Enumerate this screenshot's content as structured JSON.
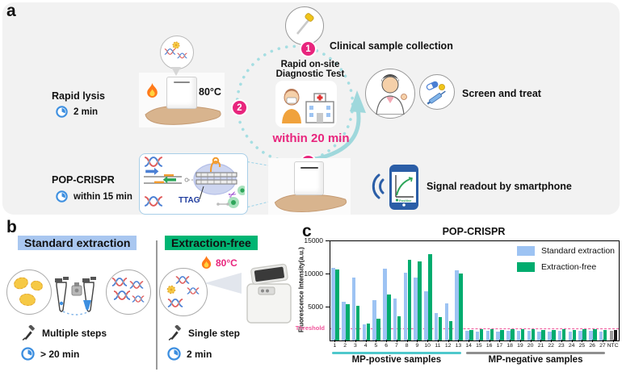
{
  "figure": {
    "panel_a_label": "a",
    "panel_b_label": "b",
    "panel_c_label": "c"
  },
  "panel_a": {
    "badge_1": "1",
    "badge_2": "2",
    "badge_3": "3",
    "clinical_label": "Clinical sample collection",
    "rapid_lysis_title": "Rapid lysis",
    "rapid_lysis_time": "2 min",
    "lysis_temp": "80°C",
    "diagnostic_test_line1": "Rapid on-site",
    "diagnostic_test_line2": "Diagnostic Test",
    "within_total_time": "within  20 min",
    "screen_treat_label": "Screen and treat",
    "pop_crispr_title": "POP-CRISPR",
    "pop_crispr_time": "within 15 min",
    "ttag_label": "TTAG",
    "signal_readout_label": "Signal readout by smartphone",
    "phone_positive_label": "Positive"
  },
  "panel_b": {
    "standard": {
      "header": "Standard extraction",
      "steps": "Multiple steps",
      "time": "> 20 min",
      "highlight": "#A9C7F0"
    },
    "extraction_free": {
      "header": "Extraction-free",
      "temp": "80°C",
      "steps": "Single step",
      "time": "2 min",
      "highlight": "#00B573"
    }
  },
  "chart_data": {
    "type": "bar",
    "title": "POP-CRISPR",
    "ylabel": "Fluorescence Intensity(a.u.)",
    "ylim": [
      0,
      15000
    ],
    "yticks": [
      5000,
      10000,
      15000
    ],
    "grid": false,
    "legend_position": "top-right",
    "categories": [
      "1",
      "2",
      "3",
      "4",
      "5",
      "6",
      "7",
      "8",
      "9",
      "10",
      "11",
      "12",
      "13",
      "14",
      "15",
      "16",
      "17",
      "18",
      "19",
      "20",
      "21",
      "22",
      "23",
      "24",
      "25",
      "26",
      "27",
      "NTC"
    ],
    "series": [
      {
        "name": "Standard extraction",
        "color": "#9DC3F3",
        "values": [
          11000,
          5800,
          9500,
          2500,
          6100,
          10900,
          6300,
          10300,
          9500,
          7500,
          4100,
          5600,
          10600,
          1500,
          1400,
          1500,
          1350,
          1500,
          1450,
          1500,
          1400,
          1350,
          1500,
          1300,
          1450,
          1500,
          1400,
          1500
        ]
      },
      {
        "name": "Extraction-free",
        "color": "#00AC6E",
        "values": [
          10700,
          5500,
          5200,
          2600,
          3300,
          7000,
          3600,
          12200,
          11900,
          13100,
          3500,
          2900,
          10100,
          1600,
          1700,
          1650,
          1600,
          1700,
          1650,
          1700,
          1600,
          1550,
          1650,
          1600,
          1700,
          1650,
          1600,
          1600
        ]
      }
    ],
    "ntc_colors": [
      "#9B9B9B",
      "#1A1A1A"
    ],
    "threshold": {
      "label": "Threshold",
      "value": 1700,
      "color": "#F0569B"
    },
    "groups": [
      {
        "text": "MP-postive samples",
        "start": 0,
        "end": 12,
        "underline_color": "#4FC8CC"
      },
      {
        "text": "MP-negative samples",
        "start": 13,
        "end": 26,
        "underline_color": "#8F8F8F"
      }
    ]
  }
}
